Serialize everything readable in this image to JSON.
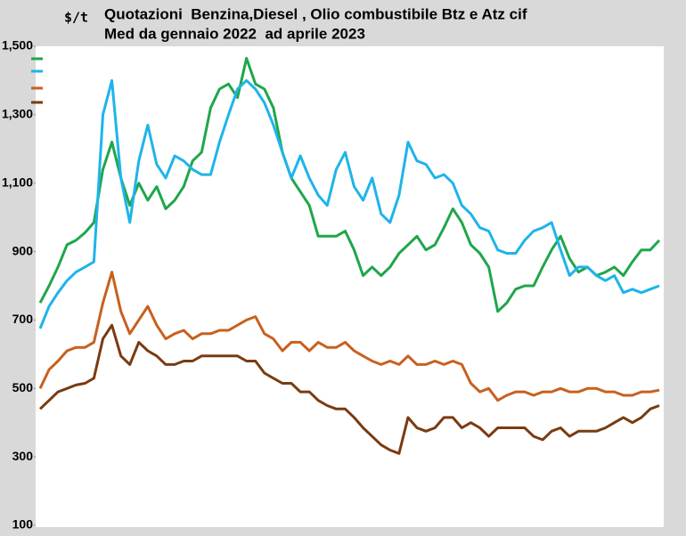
{
  "chart_data": {
    "type": "line",
    "title_lines": [
      "Quotazioni  Benzina,Diesel , Olio combustibile Btz e Atz cif",
      "Med da gennaio 2022  ad aprile 2023"
    ],
    "y_label": "$/t",
    "ylim": [
      100,
      1500
    ],
    "yticks": [
      100,
      300,
      500,
      700,
      900,
      {
        "value": 1100,
        "label": "1,100"
      },
      {
        "value": 1300,
        "label": "1,300"
      },
      {
        "value": 1500,
        "label": "1,500"
      }
    ],
    "grid": false,
    "legend": "top-left",
    "series": [
      {
        "color": "#1fa64a",
        "values": [
          750,
          800,
          855,
          920,
          933,
          955,
          985,
          1140,
          1220,
          1115,
          1035,
          1100,
          1050,
          1090,
          1025,
          1050,
          1090,
          1165,
          1190,
          1320,
          1375,
          1390,
          1350,
          1465,
          1390,
          1375,
          1320,
          1190,
          1115,
          1075,
          1035,
          945,
          945,
          945,
          960,
          905,
          830,
          855,
          830,
          855,
          895,
          920,
          945,
          905,
          920,
          970,
          1025,
          985,
          920,
          895,
          855,
          725,
          750,
          790,
          800,
          800,
          855,
          905,
          945,
          880,
          840,
          855,
          830,
          840,
          855,
          830,
          870,
          905,
          905,
          933
        ]
      },
      {
        "color": "#1eb4ea",
        "values": [
          675,
          740,
          780,
          815,
          840,
          855,
          870,
          1300,
          1400,
          1115,
          985,
          1165,
          1270,
          1155,
          1115,
          1180,
          1165,
          1140,
          1125,
          1125,
          1220,
          1300,
          1375,
          1400,
          1375,
          1335,
          1270,
          1190,
          1115,
          1180,
          1115,
          1065,
          1035,
          1140,
          1190,
          1090,
          1050,
          1115,
          1010,
          985,
          1065,
          1220,
          1165,
          1155,
          1115,
          1125,
          1100,
          1035,
          1010,
          970,
          960,
          905,
          895,
          895,
          933,
          960,
          970,
          985,
          905,
          830,
          855,
          855,
          830,
          815,
          830,
          780,
          790,
          780,
          790,
          800
        ]
      },
      {
        "color": "#c8601e",
        "values": [
          500,
          555,
          580,
          610,
          620,
          620,
          635,
          750,
          840,
          725,
          660,
          700,
          740,
          685,
          645,
          660,
          670,
          645,
          660,
          660,
          670,
          670,
          685,
          700,
          710,
          660,
          645,
          610,
          635,
          635,
          610,
          635,
          620,
          620,
          635,
          610,
          595,
          580,
          570,
          580,
          570,
          595,
          570,
          570,
          580,
          570,
          580,
          570,
          515,
          490,
          500,
          465,
          480,
          490,
          490,
          480,
          490,
          490,
          500,
          490,
          490,
          500,
          500,
          490,
          490,
          480,
          480,
          490,
          490,
          495
        ]
      },
      {
        "color": "#7a3b10",
        "values": [
          440,
          465,
          490,
          500,
          510,
          515,
          530,
          645,
          685,
          595,
          570,
          635,
          610,
          595,
          570,
          570,
          580,
          580,
          595,
          595,
          595,
          595,
          595,
          580,
          580,
          545,
          530,
          515,
          515,
          490,
          490,
          465,
          450,
          440,
          440,
          415,
          385,
          360,
          335,
          320,
          310,
          415,
          385,
          375,
          385,
          415,
          415,
          385,
          400,
          385,
          360,
          385,
          385,
          385,
          385,
          360,
          350,
          375,
          385,
          360,
          375,
          375,
          375,
          385,
          400,
          415,
          400,
          415,
          440,
          450
        ]
      }
    ]
  }
}
